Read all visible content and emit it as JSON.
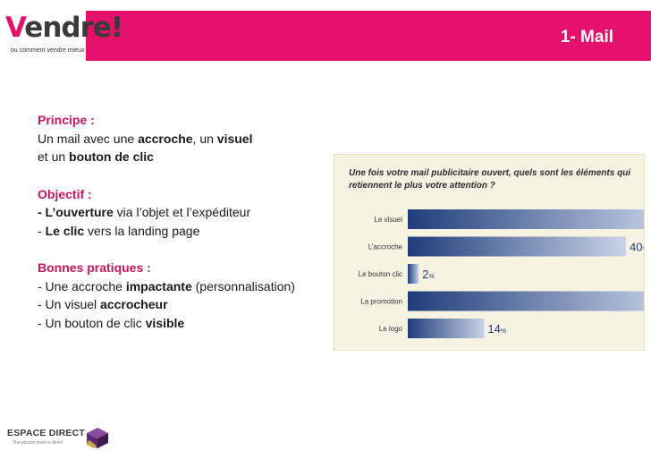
{
  "header": {
    "title": "1- Mail"
  },
  "brand": {
    "logo_word_initial": "V",
    "logo_word_rest": "endre!",
    "logo_tagline": "ou comment vendre mieux"
  },
  "content": {
    "principe": {
      "heading": "Principe :",
      "line1_pre": "Un mail avec  une ",
      "line1_b1": "accroche",
      "line1_mid": ", un ",
      "line1_b2": "visuel",
      "line2_pre": "et un ",
      "line2_b": "bouton de clic"
    },
    "objectif": {
      "heading": "Objectif :",
      "line1_b": "- L’ouverture",
      "line1_rest": " via l’objet et l’expéditeur",
      "line2_pre": "- ",
      "line2_b": "Le clic",
      "line2_rest": " vers la landing page"
    },
    "pratiques": {
      "heading": "Bonnes pratiques :",
      "line1_pre": "- Une accroche ",
      "line1_b": "impactante",
      "line1_rest": " (personnalisation)",
      "line2_pre": "- Un visuel ",
      "line2_b": "accrocheur",
      "line3_pre": "- Un bouton de clic ",
      "line3_b": "visible"
    }
  },
  "chart_data": {
    "type": "bar",
    "title": "Une fois votre mail publicitaire ouvert, quels sont les éléments qui retiennent le plus votre attention ?",
    "categories": [
      "Le visuel",
      "L’accroche",
      "Le bouton clic",
      "La promotion",
      "Le logo"
    ],
    "values": [
      48,
      40,
      2,
      49,
      14
    ],
    "value_suffix": "%",
    "ylim": [
      0,
      50
    ],
    "colors": {
      "bar_start": "#1f3d7a",
      "bar_end": "#c9d3e8",
      "label": "#1f3d7a"
    }
  },
  "footer": {
    "brand": "ESPACE DIRECT",
    "tagline": "The picture more is direct"
  }
}
